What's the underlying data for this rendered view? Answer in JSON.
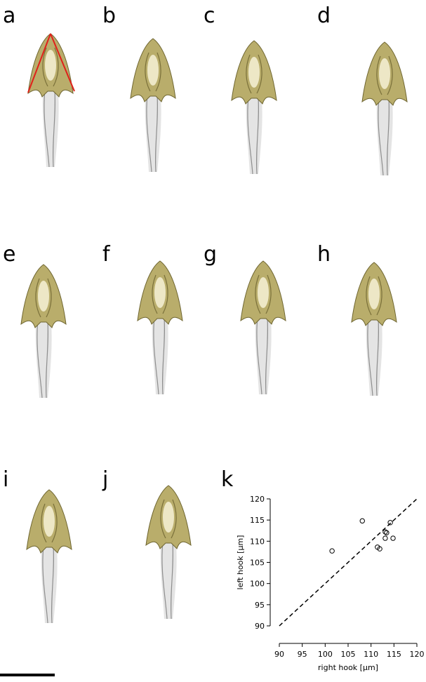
{
  "panels": [
    "a",
    "b",
    "c",
    "d",
    "e",
    "f",
    "g",
    "h",
    "i",
    "j",
    "k"
  ],
  "chart_data": {
    "type": "scatter",
    "xlabel": "right hook [µm]",
    "ylabel": "left hook [µm]",
    "x": [
      101.5,
      108.1,
      111.4,
      111.9,
      113.1,
      113.1,
      113.4,
      114.2,
      114.8
    ],
    "values": [
      107.7,
      114.8,
      108.6,
      108.2,
      110.7,
      112.2,
      112.0,
      114.4,
      110.7
    ],
    "color": "#000000",
    "xlim": [
      90,
      120
    ],
    "ylim": [
      90,
      120
    ],
    "xticks": [
      90,
      95,
      100,
      105,
      110,
      115,
      120
    ],
    "yticks": [
      90,
      95,
      100,
      105,
      110,
      115,
      120
    ]
  }
}
